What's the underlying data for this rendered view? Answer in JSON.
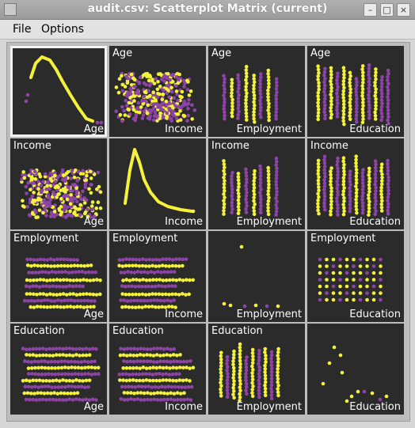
{
  "window": {
    "title": "audit.csv: Scatterplot Matrix (current)",
    "controls": [
      "minimize-icon",
      "maximize-icon",
      "close-icon"
    ]
  },
  "menu": {
    "file_label": "File",
    "options_label": "Options"
  },
  "colors": {
    "cell_background": "#2b2b2b",
    "yellow": "#f4f23a",
    "purple": "#8e44a6",
    "selected_border": "#f2f2f2"
  },
  "variables": [
    "Age",
    "Income",
    "Employment",
    "Education"
  ],
  "matrix": {
    "rows": [
      {
        "cells": [
          {
            "top": "",
            "bottom": "Age",
            "kind": "density",
            "selected": true
          },
          {
            "top": "Age",
            "bottom": "Income",
            "kind": "scatter"
          },
          {
            "top": "Age",
            "bottom": "Employment",
            "kind": "scatter"
          },
          {
            "top": "Age",
            "bottom": "Education",
            "kind": "scatter"
          }
        ]
      },
      {
        "cells": [
          {
            "top": "Income",
            "bottom": "Age",
            "kind": "scatter"
          },
          {
            "top": "",
            "bottom": "Income",
            "kind": "density"
          },
          {
            "top": "Income",
            "bottom": "Employment",
            "kind": "scatter"
          },
          {
            "top": "Income",
            "bottom": "Education",
            "kind": "scatter"
          }
        ]
      },
      {
        "cells": [
          {
            "top": "Employment",
            "bottom": "Age",
            "kind": "scatter"
          },
          {
            "top": "Employment",
            "bottom": "Income",
            "kind": "scatter"
          },
          {
            "top": "",
            "bottom": "Employment",
            "kind": "density"
          },
          {
            "top": "Employment",
            "bottom": "Education",
            "kind": "scatter"
          }
        ]
      },
      {
        "cells": [
          {
            "top": "Education",
            "bottom": "Age",
            "kind": "scatter"
          },
          {
            "top": "Education",
            "bottom": "Income",
            "kind": "scatter"
          },
          {
            "top": "Education",
            "bottom": "Employment",
            "kind": "scatter"
          },
          {
            "top": "",
            "bottom": "Education",
            "kind": "density"
          }
        ]
      }
    ]
  }
}
